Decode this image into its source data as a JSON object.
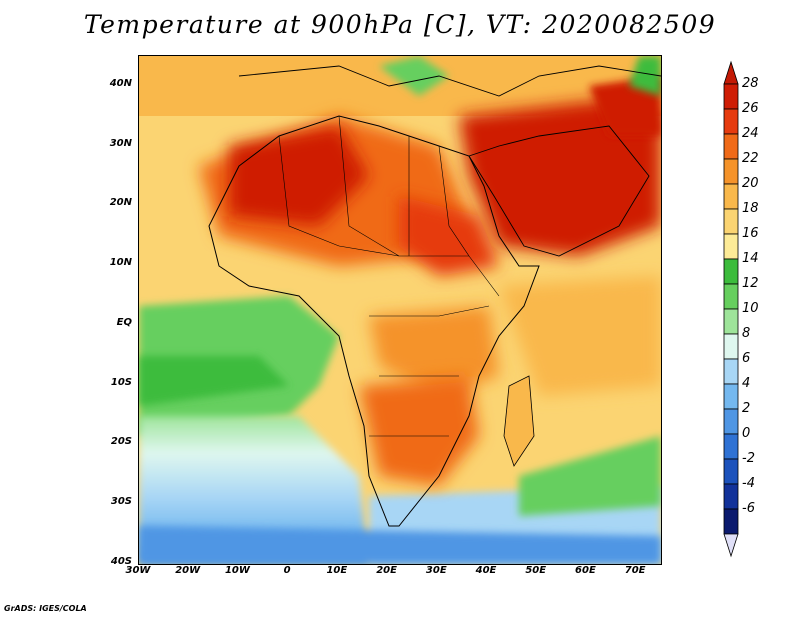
{
  "title": "Temperature at 900hPa [C], VT: 2020082509",
  "footer": "GrADS: IGES/COLA",
  "map": {
    "lon_range": [
      -30,
      75
    ],
    "lat_range": [
      -40,
      45
    ],
    "lat_labels": [
      {
        "lat": 40,
        "label": "40N"
      },
      {
        "lat": 30,
        "label": "30N"
      },
      {
        "lat": 20,
        "label": "20N"
      },
      {
        "lat": 10,
        "label": "10N"
      },
      {
        "lat": 0,
        "label": "EQ"
      },
      {
        "lat": -10,
        "label": "10S"
      },
      {
        "lat": -20,
        "label": "20S"
      },
      {
        "lat": -30,
        "label": "30S"
      },
      {
        "lat": -40,
        "label": "40S"
      }
    ],
    "lon_labels": [
      {
        "lon": -30,
        "label": "30W"
      },
      {
        "lon": -20,
        "label": "20W"
      },
      {
        "lon": -10,
        "label": "10W"
      },
      {
        "lon": 0,
        "label": "0"
      },
      {
        "lon": 10,
        "label": "10E"
      },
      {
        "lon": 20,
        "label": "20E"
      },
      {
        "lon": 30,
        "label": "30E"
      },
      {
        "lon": 40,
        "label": "40E"
      },
      {
        "lon": 50,
        "label": "50E"
      },
      {
        "lon": 60,
        "label": "60E"
      },
      {
        "lon": 70,
        "label": "70E"
      }
    ]
  },
  "colorbar": {
    "unit": "C",
    "levels": [
      {
        "label": "28",
        "color": "#cf1d05"
      },
      {
        "label": "26",
        "color": "#e63b0f"
      },
      {
        "label": "24",
        "color": "#f06a18"
      },
      {
        "label": "22",
        "color": "#f5932a"
      },
      {
        "label": "20",
        "color": "#f9b84b"
      },
      {
        "label": "18",
        "color": "#fbd472"
      },
      {
        "label": "16",
        "color": "#fdeb97"
      },
      {
        "label": "14",
        "color": "#3cbc3c"
      },
      {
        "label": "12",
        "color": "#66cf5e"
      },
      {
        "label": "10",
        "color": "#9ee49a"
      },
      {
        "label": "8",
        "color": "#dff7ef"
      },
      {
        "label": "6",
        "color": "#a8d6f5"
      },
      {
        "label": "4",
        "color": "#74b8ef"
      },
      {
        "label": "2",
        "color": "#4f96e4"
      },
      {
        "label": "0",
        "color": "#2f72d4"
      },
      {
        "label": "-2",
        "color": "#1c52bc"
      },
      {
        "label": "-4",
        "color": "#12329a"
      },
      {
        "label": "-6",
        "color": "#0b1a6e"
      }
    ],
    "over_color": "#c31a05",
    "under_color": "#e0e0f8"
  }
}
